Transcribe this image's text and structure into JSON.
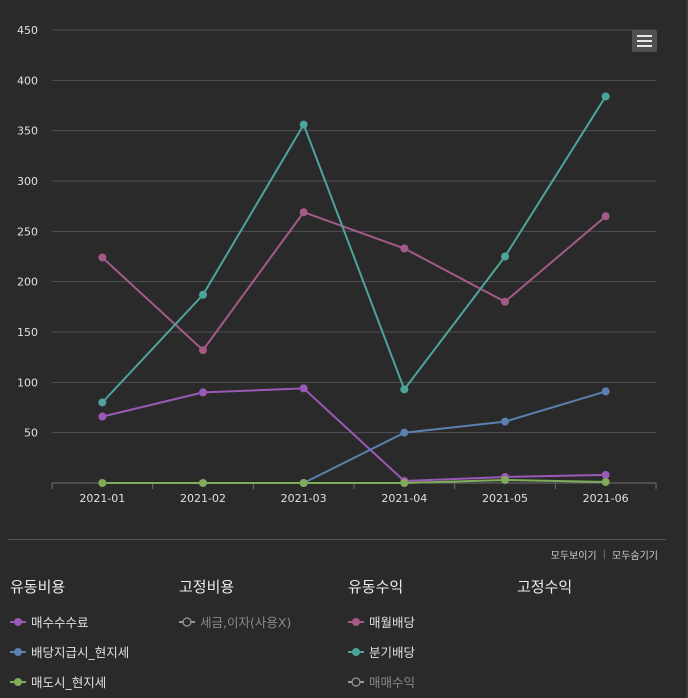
{
  "chart_data": {
    "type": "line",
    "categories": [
      "2021-01",
      "2021-02",
      "2021-03",
      "2021-04",
      "2021-05",
      "2021-06"
    ],
    "ylim": [
      0,
      450
    ],
    "y_ticks": [
      50,
      100,
      150,
      200,
      250,
      300,
      350,
      400,
      450
    ],
    "grid": true,
    "series": [
      {
        "name": "매수수수료",
        "color": "#9a59b5",
        "values": [
          66,
          90,
          94,
          2,
          6,
          8
        ]
      },
      {
        "name": "배당지급시_현지세",
        "color": "#5b7fae",
        "values": [
          null,
          null,
          0,
          50,
          61,
          91
        ]
      },
      {
        "name": "매도시_현지세",
        "color": "#7fad5a",
        "values": [
          0,
          0,
          0,
          0,
          3,
          1
        ]
      },
      {
        "name": "매월배당",
        "color": "#a35a86",
        "values": [
          224,
          132,
          269,
          233,
          180,
          265
        ]
      },
      {
        "name": "분기배당",
        "color": "#4ea39a",
        "values": [
          80,
          187,
          356,
          93,
          225,
          384
        ]
      }
    ]
  },
  "toggles": {
    "show_all": "모두보이기",
    "separator": "|",
    "hide_all": "모두숨기기"
  },
  "legend_groups": [
    {
      "title": "유동비용",
      "items": [
        {
          "label": "매수수수료",
          "color": "#9a59b5",
          "visible": true
        },
        {
          "label": "배당지급시_현지세",
          "color": "#5b7fae",
          "visible": true
        },
        {
          "label": "매도시_현지세",
          "color": "#7fad5a",
          "visible": true
        }
      ]
    },
    {
      "title": "고정비용",
      "items": [
        {
          "label": "세금,이자(사용X)",
          "color": "#9a9a9a",
          "visible": false
        }
      ]
    },
    {
      "title": "유동수익",
      "items": [
        {
          "label": "매월배당",
          "color": "#a35a86",
          "visible": true
        },
        {
          "label": "분기배당",
          "color": "#4ea39a",
          "visible": true
        },
        {
          "label": "매매수익",
          "color": "#9a9a9a",
          "visible": false
        }
      ]
    },
    {
      "title": "고정수익",
      "items": []
    }
  ],
  "icons": {
    "menu": "hamburger-menu-icon"
  }
}
